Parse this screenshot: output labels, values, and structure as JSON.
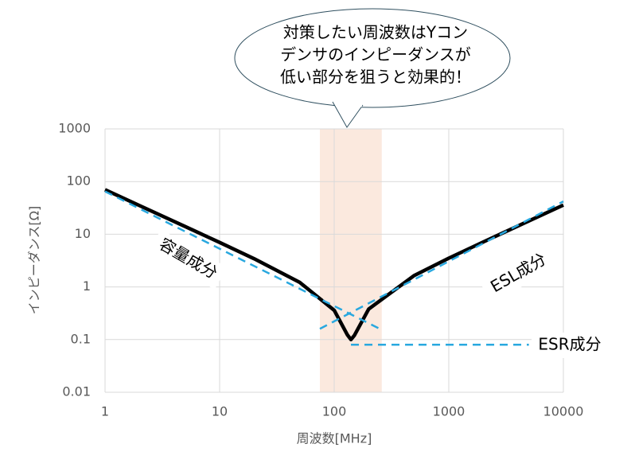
{
  "chart_data": {
    "type": "line",
    "x_label": "周波数[MHz]",
    "y_label": "インピーダンス[Ω]",
    "log_x": true,
    "log_y": true,
    "grid": true,
    "xlim": [
      1,
      10000
    ],
    "xticks": [
      1,
      10,
      100,
      1000,
      10000
    ],
    "ylim": [
      0.01,
      1000
    ],
    "yticks": [
      0.01,
      0.1,
      1,
      10,
      100,
      1000
    ],
    "highlight_range": [
      75,
      260
    ],
    "highlight_color": "#fbe9de",
    "callout": [
      "対策したい周波数はYコン",
      "デンサのインピーダンスが",
      "低い部分を狙うと効果的！"
    ],
    "series": [
      {
        "color": "#000000",
        "dashed": false,
        "x": [
          1,
          2,
          5,
          10,
          20,
          50,
          100,
          130,
          140,
          150,
          200,
          500,
          1000,
          2000,
          5000,
          10000
        ],
        "values": [
          70,
          35,
          14,
          7.0,
          3.43,
          1.22,
          0.36,
          0.124,
          0.1,
          0.12,
          0.38,
          1.65,
          3.51,
          7.13,
          17.9,
          35.8
        ]
      },
      {
        "name": "容量成分",
        "color": "#29a8df",
        "dashed": true,
        "x": [
          1,
          250
        ],
        "values": [
          65,
          0.16
        ]
      },
      {
        "name": "ESL成分",
        "color": "#29a8df",
        "dashed": true,
        "x": [
          75,
          10000
        ],
        "values": [
          0.16,
          42
        ]
      },
      {
        "name": "ESR成分",
        "color": "#29a8df",
        "dashed": true,
        "x": [
          140,
          5000
        ],
        "values": [
          0.08,
          0.08
        ]
      }
    ]
  }
}
